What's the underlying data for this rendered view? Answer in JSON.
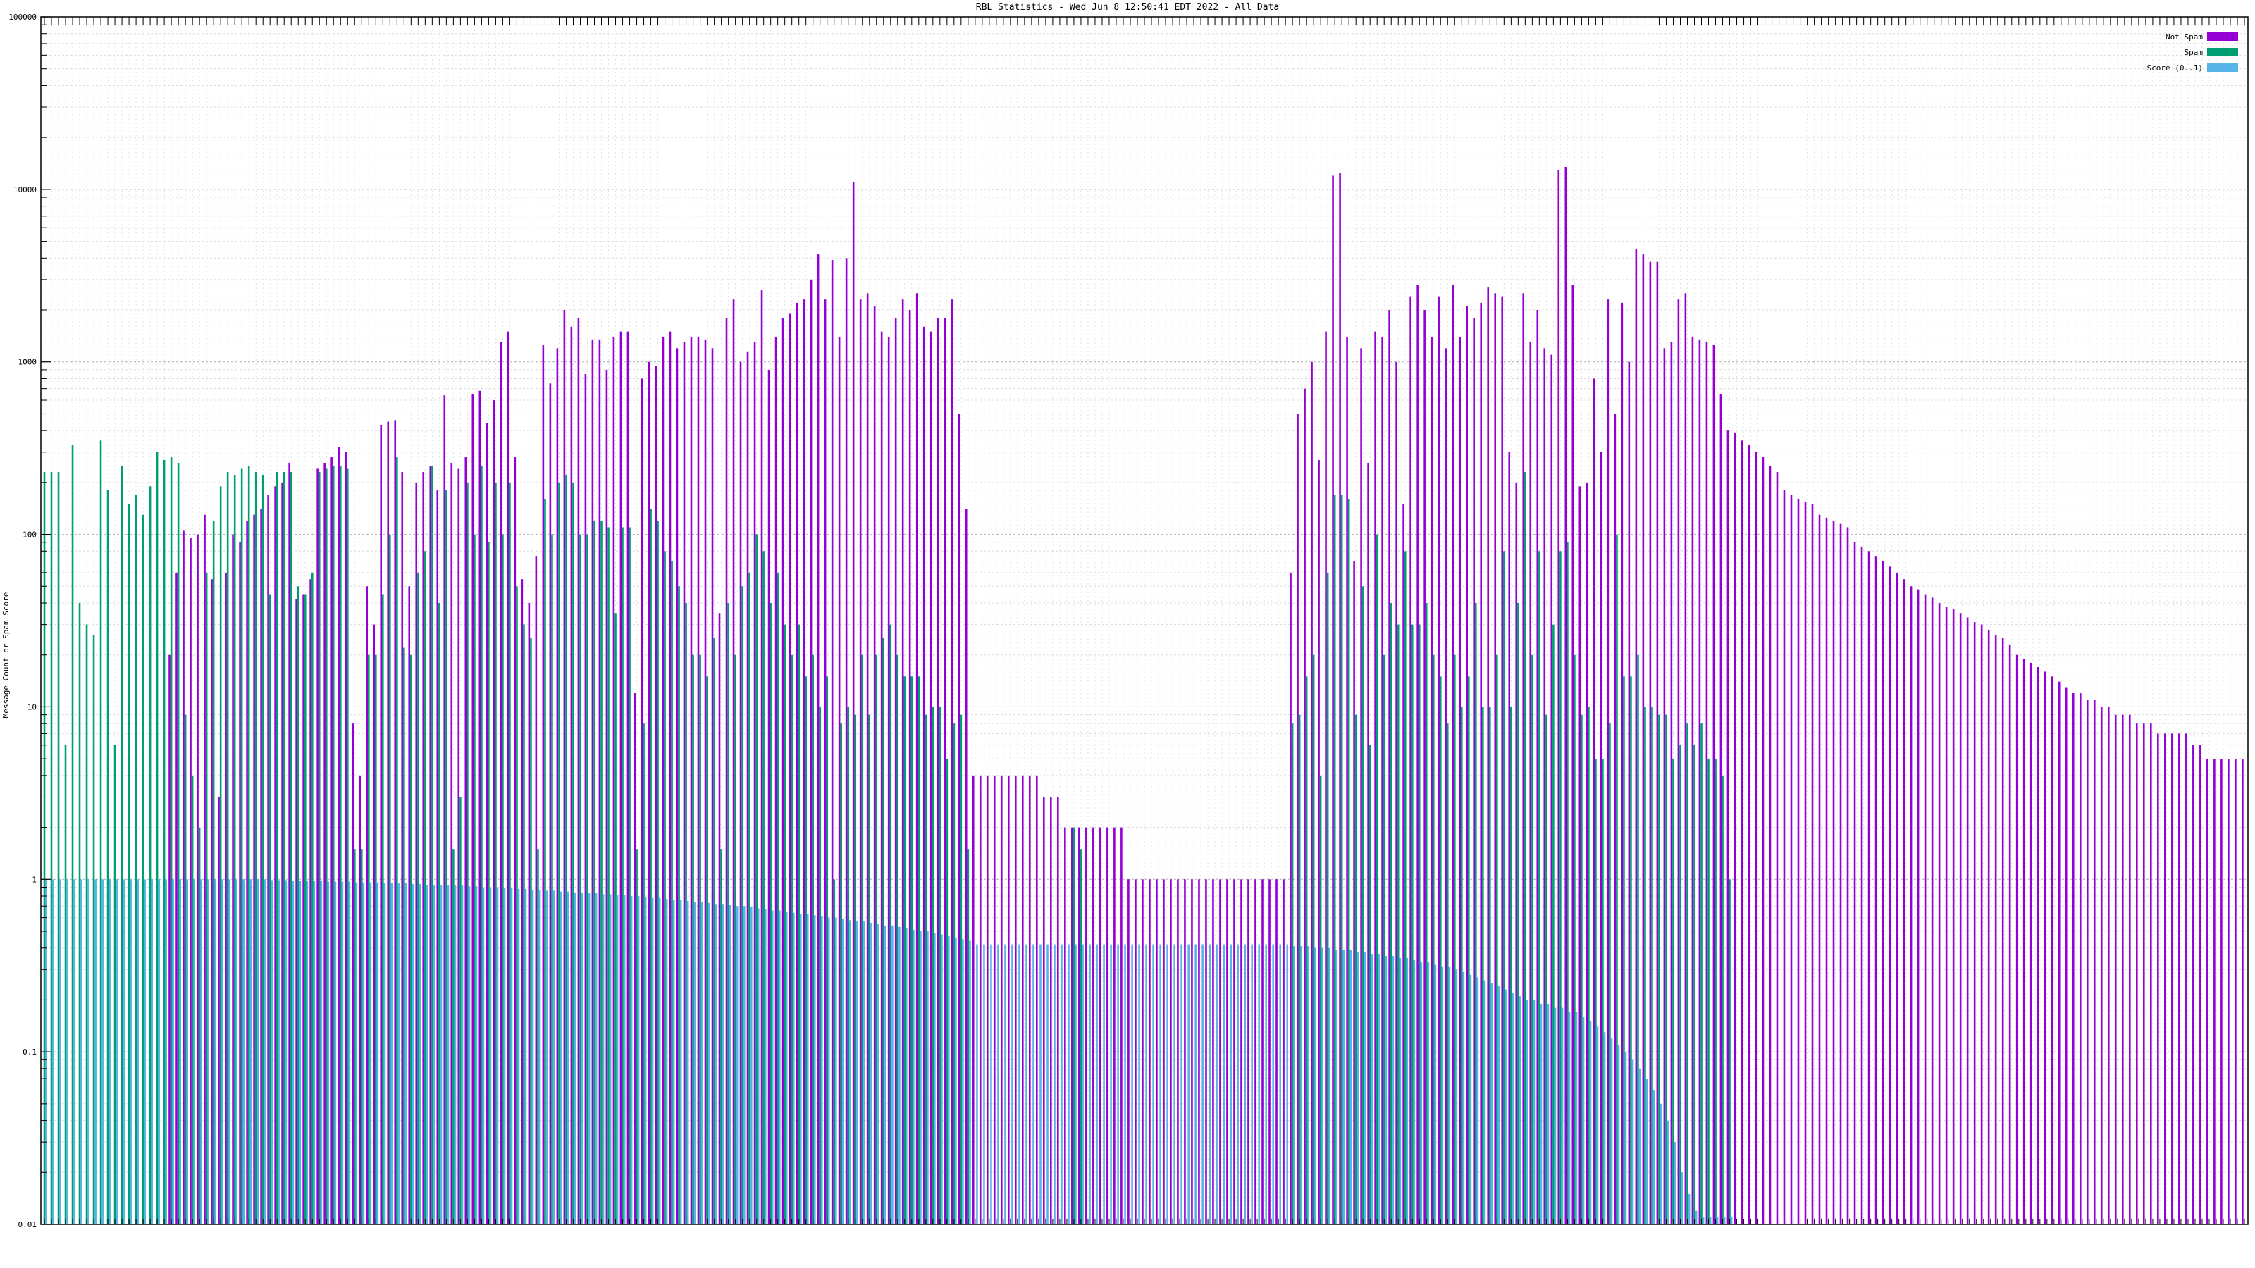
{
  "chart_data": {
    "type": "bar",
    "title": "RBL Statistics - Wed Jun  8 12:50:41 EDT 2022 - All Data",
    "ylabel": "Message Count or Spam Score",
    "y_scale": "log",
    "ylim": [
      0.01,
      100000
    ],
    "y_ticks": [
      "100000",
      "10000",
      "1000",
      "100",
      "10",
      "1",
      "0.1",
      "0.01"
    ],
    "grid": true,
    "legend_position": "top-right",
    "series": [
      {
        "name": "Not Spam",
        "color": "#9400d3",
        "values": [
          0.01,
          0.01,
          0.01,
          0.01,
          0.01,
          0.01,
          0.01,
          0.01,
          0.01,
          0.01,
          0.01,
          0.01,
          0.01,
          0.01,
          0.01,
          0.01,
          0.01,
          0.01,
          20,
          60,
          105,
          95,
          100,
          130,
          55,
          3,
          60,
          100,
          90,
          120,
          130,
          140,
          170,
          190,
          200,
          260,
          42,
          45,
          55,
          240,
          260,
          280,
          320,
          300,
          8,
          4,
          50,
          30,
          430,
          450,
          460,
          230,
          50,
          200,
          230,
          250,
          180,
          640,
          260,
          240,
          280,
          650,
          680,
          440,
          600,
          1300,
          1500,
          280,
          55,
          40,
          75,
          1250,
          750,
          1200,
          2000,
          1600,
          1800,
          850,
          1350,
          1350,
          900,
          1400,
          1500,
          1500,
          12,
          800,
          1000,
          950,
          1400,
          1500,
          1200,
          1300,
          1400,
          1400,
          1350,
          1200,
          35,
          1800,
          2300,
          1000,
          1150,
          1300,
          2600,
          900,
          1400,
          1800,
          1900,
          2200,
          2300,
          3000,
          4200,
          2300,
          3900,
          1400,
          4000,
          11000,
          2300,
          2500,
          2100,
          1500,
          1400,
          1800,
          2300,
          2000,
          2500,
          1600,
          1500,
          1800,
          1800,
          2300,
          500,
          140,
          4,
          4,
          4,
          4,
          4,
          4,
          4,
          4,
          4,
          4,
          3,
          3,
          3,
          2,
          2,
          2,
          2,
          2,
          2,
          2,
          2,
          2,
          1,
          1,
          1,
          1,
          1,
          1,
          1,
          1,
          1,
          1,
          1,
          1,
          1,
          1,
          1,
          1,
          1,
          1,
          1,
          1,
          1,
          1,
          1,
          60,
          500,
          700,
          1000,
          270,
          1500,
          12000,
          12500,
          1400,
          70,
          1200,
          260,
          1500,
          1400,
          2000,
          1000,
          150,
          2400,
          2800,
          2000,
          1400,
          2400,
          1200,
          2800,
          1400,
          2100,
          1800,
          2200,
          2700,
          2500,
          2400,
          300,
          200,
          2500,
          1300,
          2000,
          1200,
          1100,
          13000,
          13500,
          2800,
          190,
          200,
          800,
          300,
          2300,
          500,
          2200,
          1000,
          4500,
          4200,
          3800,
          3800,
          1200,
          1300,
          2300,
          2500,
          1400,
          1350,
          1300,
          1250,
          650,
          400,
          390,
          350,
          330,
          300,
          280,
          250,
          230,
          180,
          170,
          160,
          155,
          150,
          130,
          125,
          120,
          115,
          110,
          90,
          85,
          80,
          75,
          70,
          65,
          60,
          55,
          50,
          48,
          45,
          43,
          40,
          38,
          37,
          35,
          33,
          31,
          30,
          28,
          26,
          25,
          23,
          20,
          19,
          18,
          17,
          16,
          15,
          14,
          13,
          12,
          12,
          11,
          11,
          10,
          10,
          9,
          9,
          9,
          8,
          8,
          8,
          7,
          7,
          7,
          7,
          7,
          6,
          6,
          5,
          5,
          5,
          5,
          5,
          5
        ]
      },
      {
        "name": "Spam",
        "color": "#009e73",
        "values": [
          230,
          230,
          230,
          6,
          330,
          40,
          30,
          26,
          350,
          180,
          6,
          250,
          150,
          170,
          130,
          190,
          300,
          270,
          280,
          260,
          9,
          4,
          2,
          60,
          120,
          190,
          230,
          220,
          240,
          250,
          230,
          220,
          45,
          230,
          230,
          230,
          50,
          45,
          60,
          230,
          240,
          250,
          250,
          240,
          1.5,
          1.5,
          20,
          20,
          45,
          100,
          280,
          22,
          20,
          60,
          80,
          250,
          40,
          180,
          1.5,
          3,
          200,
          100,
          250,
          90,
          200,
          100,
          200,
          50,
          30,
          25,
          1.5,
          160,
          100,
          200,
          220,
          200,
          100,
          100,
          120,
          120,
          110,
          35,
          110,
          110,
          1.5,
          8,
          140,
          120,
          80,
          70,
          50,
          40,
          20,
          20,
          15,
          25,
          1.5,
          40,
          20,
          50,
          60,
          100,
          80,
          40,
          60,
          30,
          20,
          30,
          15,
          20,
          10,
          15,
          1,
          8,
          10,
          9,
          20,
          9,
          20,
          25,
          30,
          20,
          15,
          15,
          15,
          9,
          10,
          10,
          5,
          8,
          9,
          1.5,
          0.01,
          0.01,
          0.01,
          0.01,
          0.01,
          0.01,
          0.01,
          0.01,
          0.01,
          0.01,
          0.01,
          0.01,
          0.01,
          0.01,
          2,
          1.5,
          0.01,
          0.01,
          0.01,
          0.01,
          0.01,
          0.01,
          0.01,
          0.01,
          0.01,
          0.01,
          0.01,
          0.01,
          0.01,
          0.01,
          0.01,
          0.01,
          0.01,
          0.01,
          0.01,
          0.01,
          0.01,
          0.01,
          0.01,
          0.01,
          0.01,
          0.01,
          0.01,
          0.01,
          0.01,
          8,
          9,
          15,
          20,
          4,
          60,
          170,
          170,
          160,
          9,
          50,
          6,
          100,
          20,
          40,
          30,
          80,
          30,
          30,
          40,
          20,
          15,
          8,
          20,
          10,
          15,
          40,
          10,
          10,
          20,
          80,
          10,
          40,
          230,
          20,
          80,
          9,
          30,
          80,
          90,
          20,
          9,
          10,
          5,
          5,
          8,
          100,
          15,
          15,
          20,
          10,
          10,
          9,
          9,
          5,
          6,
          8,
          6,
          8,
          5,
          5,
          4,
          1,
          0.01,
          0.01,
          0.01,
          0.01,
          0.01,
          0.01,
          0.01,
          0.01,
          0.01,
          0.01,
          0.01,
          0.01,
          0.01,
          0.01,
          0.01,
          0.01,
          0.01,
          0.01,
          0.01,
          0.01,
          0.01,
          0.01,
          0.01,
          0.01,
          0.01,
          0.01,
          0.01,
          0.01,
          0.01,
          0.01,
          0.01,
          0.01,
          0.01,
          0.01,
          0.01,
          0.01,
          0.01,
          0.01,
          0.01,
          0.01,
          0.01,
          0.01,
          0.01,
          0.01,
          0.01,
          0.01,
          0.01,
          0.01,
          0.01,
          0.01,
          0.01,
          0.01,
          0.01,
          0.01,
          0.01,
          0.01,
          0.01,
          0.01,
          0.01,
          0.01,
          0.01,
          0.01,
          0.01,
          0.01,
          0.01,
          0.01,
          0.01,
          0.01,
          0.01,
          0.01,
          0.01,
          0.01,
          0.01
        ]
      },
      {
        "name": "Score (0..1)",
        "color": "#56b4e9",
        "values": [
          1,
          1,
          1,
          1,
          1,
          1,
          1,
          1,
          1,
          1,
          1,
          1,
          1,
          1,
          1,
          1,
          1,
          1,
          1,
          1,
          1,
          1,
          1,
          1,
          1,
          1,
          1,
          1,
          1,
          1,
          1,
          1,
          0.99,
          0.99,
          0.99,
          0.98,
          0.98,
          0.98,
          0.98,
          0.98,
          0.97,
          0.97,
          0.97,
          0.97,
          0.96,
          0.96,
          0.96,
          0.96,
          0.95,
          0.95,
          0.95,
          0.95,
          0.94,
          0.94,
          0.93,
          0.93,
          0.93,
          0.92,
          0.92,
          0.92,
          0.91,
          0.91,
          0.9,
          0.9,
          0.9,
          0.89,
          0.89,
          0.88,
          0.88,
          0.87,
          0.87,
          0.86,
          0.86,
          0.85,
          0.85,
          0.84,
          0.84,
          0.83,
          0.83,
          0.82,
          0.82,
          0.81,
          0.81,
          0.8,
          0.8,
          0.79,
          0.78,
          0.78,
          0.77,
          0.76,
          0.76,
          0.75,
          0.74,
          0.74,
          0.73,
          0.72,
          0.72,
          0.71,
          0.7,
          0.7,
          0.69,
          0.68,
          0.67,
          0.66,
          0.66,
          0.65,
          0.64,
          0.63,
          0.63,
          0.62,
          0.61,
          0.6,
          0.6,
          0.59,
          0.58,
          0.57,
          0.57,
          0.56,
          0.55,
          0.54,
          0.54,
          0.53,
          0.52,
          0.51,
          0.5,
          0.5,
          0.49,
          0.48,
          0.47,
          0.46,
          0.45,
          0.44,
          0.42,
          0.42,
          0.42,
          0.42,
          0.42,
          0.42,
          0.42,
          0.42,
          0.42,
          0.42,
          0.42,
          0.42,
          0.42,
          0.42,
          0.42,
          0.42,
          0.42,
          0.42,
          0.42,
          0.42,
          0.42,
          0.42,
          0.42,
          0.42,
          0.42,
          0.42,
          0.42,
          0.42,
          0.42,
          0.42,
          0.42,
          0.42,
          0.42,
          0.42,
          0.42,
          0.42,
          0.42,
          0.42,
          0.42,
          0.42,
          0.42,
          0.42,
          0.42,
          0.42,
          0.42,
          0.41,
          0.41,
          0.41,
          0.4,
          0.4,
          0.4,
          0.39,
          0.39,
          0.39,
          0.38,
          0.38,
          0.37,
          0.37,
          0.36,
          0.36,
          0.35,
          0.35,
          0.34,
          0.33,
          0.33,
          0.32,
          0.31,
          0.31,
          0.3,
          0.29,
          0.28,
          0.27,
          0.26,
          0.25,
          0.24,
          0.23,
          0.22,
          0.21,
          0.2,
          0.2,
          0.19,
          0.19,
          0.18,
          0.18,
          0.17,
          0.17,
          0.16,
          0.15,
          0.14,
          0.13,
          0.12,
          0.11,
          0.1,
          0.09,
          0.08,
          0.07,
          0.06,
          0.05,
          0.04,
          0.03,
          0.02,
          0.015,
          0.012,
          0.011,
          0.011,
          0.011,
          0.011,
          0.011,
          0.01,
          0.01,
          0.01,
          0.01,
          0.01,
          0.01,
          0.01,
          0.01,
          0.01,
          0.01,
          0.01,
          0.01,
          0.01,
          0.01,
          0.01,
          0.01,
          0.01,
          0.01,
          0.01,
          0.01,
          0.01,
          0.01,
          0.01,
          0.01,
          0.01,
          0.01,
          0.01,
          0.01,
          0.01,
          0.01,
          0.01,
          0.01,
          0.01,
          0.01,
          0.01,
          0.01,
          0.01,
          0.01,
          0.01,
          0.01,
          0.01,
          0.01,
          0.01,
          0.01,
          0.01,
          0.01,
          0.01,
          0.01,
          0.01,
          0.01,
          0.01,
          0.01,
          0.01,
          0.01,
          0.01,
          0.01,
          0.01,
          0.01,
          0.01,
          0.01,
          0.01,
          0.01,
          0.01,
          0.01,
          0.01,
          0.01,
          0.01,
          0.01,
          0.01,
          0.01,
          0.01,
          0.01,
          0.01
        ]
      }
    ]
  }
}
